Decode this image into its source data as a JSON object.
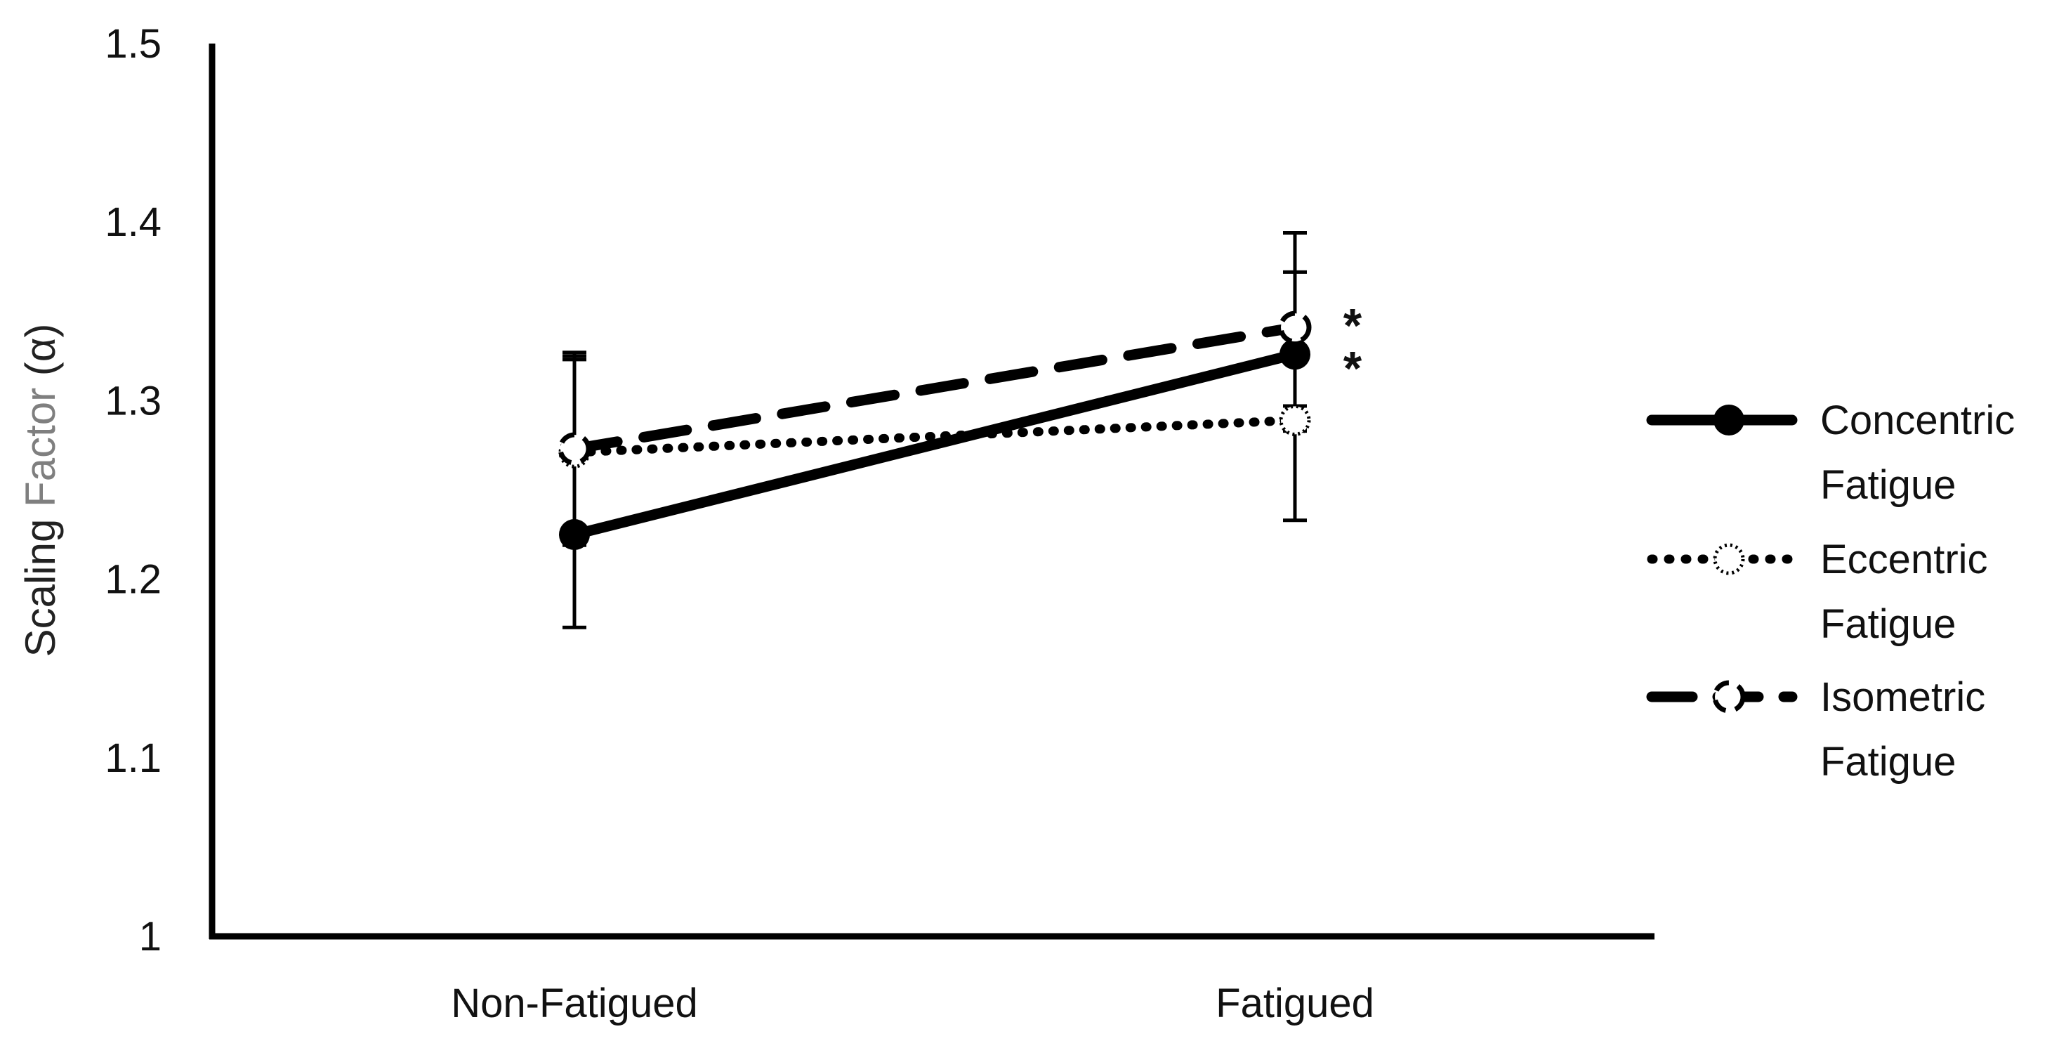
{
  "chart_data": {
    "type": "line",
    "categories": [
      "Non-Fatigued",
      "Fatigued"
    ],
    "ylabel_parts": [
      "Scaling ",
      "Factor",
      " (α)"
    ],
    "ylim": [
      1,
      1.5
    ],
    "yticks": [
      "1",
      "1.1",
      "1.2",
      "1.3",
      "1.4",
      "1.5"
    ],
    "grid": false,
    "legend_position": "right",
    "series": [
      {
        "name_lines": [
          "Concentric",
          "Fatigue"
        ],
        "values": [
          1.225,
          1.326
        ],
        "err_low": [
          1.173,
          1.233
        ],
        "err_high": [
          1.327,
          1.394
        ],
        "style": "solid",
        "marker": "filled-circle",
        "color": "#000000"
      },
      {
        "name_lines": [
          "Eccentric",
          "Fatigue"
        ],
        "values": [
          1.271,
          1.289
        ],
        "err_low": [
          1.219,
          1.284
        ],
        "err_high": [
          1.325,
          1.297
        ],
        "style": "dotted",
        "marker": "dotted-circle",
        "color": "#000000"
      },
      {
        "name_lines": [
          "Isometric",
          "Fatigue"
        ],
        "values": [
          1.273,
          1.341
        ],
        "err_low": [
          1.222,
          1.283
        ],
        "err_high": [
          1.323,
          1.372
        ],
        "style": "dashed",
        "marker": "dashed-circle",
        "color": "#000000"
      }
    ],
    "annotations": [
      {
        "text": "*",
        "category": "Fatigued",
        "value": 1.348
      },
      {
        "text": "*",
        "category": "Fatigued",
        "value": 1.324
      }
    ],
    "colors": {
      "axis": "#000000",
      "ylabel_main": "#222222",
      "ylabel_factor": "#7f7f7f"
    }
  }
}
